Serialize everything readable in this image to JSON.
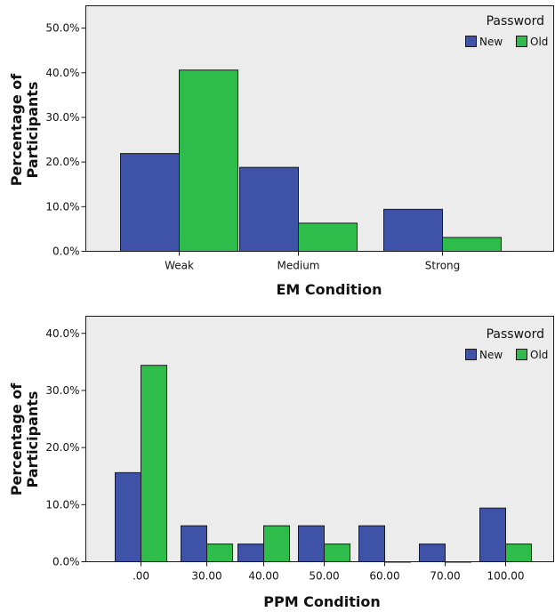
{
  "colors": {
    "new": "#3e52a8",
    "old": "#2ebd4a"
  },
  "chart_data": [
    {
      "type": "bar",
      "title": "",
      "xlabel": "EM Condition",
      "ylabel": "Percentage of Participants",
      "ylim": [
        0,
        55
      ],
      "yticks": [
        "0.0%",
        "10.0%",
        "20.0%",
        "30.0%",
        "40.0%",
        "50.0%"
      ],
      "ytick_values": [
        0,
        10,
        20,
        30,
        40,
        50
      ],
      "categories": [
        "Weak",
        "Medium",
        "Strong"
      ],
      "legend": {
        "title": "Password",
        "position": "top-right"
      },
      "series": [
        {
          "name": "New",
          "values": [
            21.9,
            18.8,
            9.4
          ]
        },
        {
          "name": "Old",
          "values": [
            40.6,
            6.3,
            3.1
          ]
        }
      ]
    },
    {
      "type": "bar",
      "title": "",
      "xlabel": "PPM Condition",
      "ylabel": "Percentage of Participants",
      "ylim": [
        0,
        43
      ],
      "yticks": [
        "0.0%",
        "10.0%",
        "20.0%",
        "30.0%",
        "40.0%"
      ],
      "ytick_values": [
        0,
        10,
        20,
        30,
        40
      ],
      "categories": [
        ".00",
        "30.00",
        "40.00",
        "50.00",
        "60.00",
        "70.00",
        "100.00"
      ],
      "legend": {
        "title": "Password",
        "position": "top-right"
      },
      "series": [
        {
          "name": "New",
          "values": [
            15.6,
            6.3,
            3.1,
            6.3,
            6.3,
            3.1,
            9.4
          ]
        },
        {
          "name": "Old",
          "values": [
            34.4,
            3.1,
            6.3,
            3.1,
            0,
            0,
            3.1
          ]
        }
      ]
    }
  ]
}
